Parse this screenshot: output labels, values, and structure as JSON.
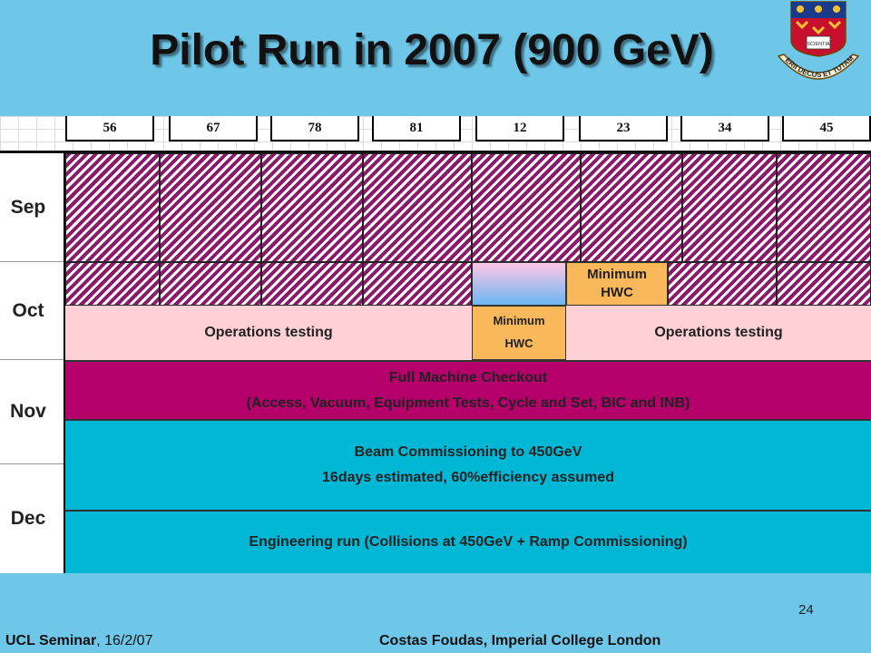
{
  "title": "Pilot Run in 2007 (900 GeV)",
  "crest": {
    "book_text": "SCIENTIA",
    "motto": "IMPERII DECUS ET TUTAMEN"
  },
  "header_columns": [
    "56",
    "67",
    "78",
    "81",
    "12",
    "23",
    "34",
    "45"
  ],
  "months": {
    "sep": "Sep",
    "oct": "Oct",
    "nov": "Nov",
    "dec": "Dec"
  },
  "schedule": {
    "oct_min_hwc_top": [
      "Minimum",
      "HWC"
    ],
    "ops_testing_left": "Operations testing",
    "oct_min_hwc_bottom": [
      "Minimum",
      "HWC"
    ],
    "ops_testing_right": "Operations testing",
    "full_checkout": [
      "Full Machine Checkout",
      "(Access, Vacuum, Equipment Tests, Cycle and Set, BIC and INB)"
    ],
    "beam_commissioning": [
      "Beam Commissioning to 450GeV",
      "16days estimated, 60%efficiency assumed"
    ],
    "engineering_run": "Engineering run (Collisions at 450GeV + Ramp Commissioning)"
  },
  "colors": {
    "background": "#6ec7e9",
    "hatch": "#8b1a6b",
    "pink": "#ffd0d6",
    "orange": "#f9b95a",
    "magenta": "#b5006c",
    "cyan": "#00b8d6"
  },
  "footer": {
    "page_number": "24",
    "left_bold": "UCL Seminar",
    "left_rest": ", 16/2/07",
    "right": "Costas Foudas, Imperial College London"
  }
}
